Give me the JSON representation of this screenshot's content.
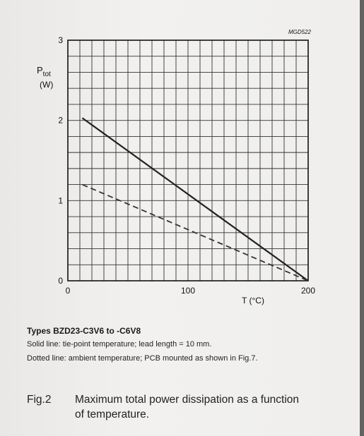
{
  "chart_data": {
    "type": "line",
    "figure_id": "MGD522",
    "ylabel": "P",
    "ylabel_sub": "tot",
    "yunit": "(W)",
    "xlabel": "T (°C)",
    "xlim": [
      0,
      200
    ],
    "ylim": [
      0,
      3
    ],
    "x_ticks": [
      0,
      100,
      200
    ],
    "y_ticks": [
      0,
      1,
      2,
      3
    ],
    "x_tick_labels": [
      "0",
      "100",
      "200"
    ],
    "y_tick_labels": [
      "0",
      "1",
      "2",
      "3"
    ],
    "grid": true,
    "series": [
      {
        "style": "solid",
        "color": "#222222",
        "x": [
          12,
          200
        ],
        "y": [
          2.03,
          0
        ]
      },
      {
        "style": "dashed",
        "color": "#333333",
        "x": [
          12,
          200
        ],
        "y": [
          1.2,
          0
        ]
      }
    ]
  },
  "caption": {
    "types": "Types BZD23-C3V6 to -C6V8",
    "solid_note": "Solid line: tie-point temperature; lead length = 10 mm.",
    "dotted_note": "Dotted line: ambient temperature; PCB mounted as shown in Fig.7.",
    "fig_number": "Fig.2",
    "fig_text": "Maximum total power dissipation as a function of temperature."
  }
}
